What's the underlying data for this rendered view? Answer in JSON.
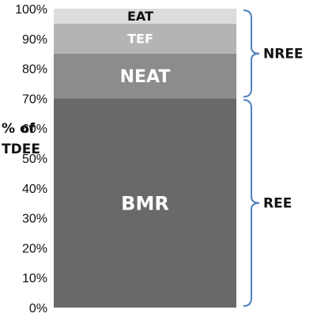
{
  "chart_data": {
    "type": "bar",
    "stacked": true,
    "ylabel": "% of TDEE",
    "ylabel_lines": [
      "% of",
      "TDEE"
    ],
    "ylim": [
      0,
      100
    ],
    "yticks": [
      "0%",
      "10%",
      "20%",
      "30%",
      "40%",
      "50%",
      "60%",
      "70%",
      "80%",
      "90%",
      "100%"
    ],
    "series": [
      {
        "name": "BMR",
        "value": 70,
        "color": "#696969"
      },
      {
        "name": "NEAT",
        "value": 15,
        "color": "#8c8c8c"
      },
      {
        "name": "TEF",
        "value": 10,
        "color": "#b4b4b4"
      },
      {
        "name": "EAT",
        "value": 5,
        "color": "#dcdcdc"
      }
    ],
    "groups": [
      {
        "name": "REE",
        "from": 0,
        "to": 70
      },
      {
        "name": "NREE",
        "from": 70,
        "to": 100
      }
    ]
  }
}
